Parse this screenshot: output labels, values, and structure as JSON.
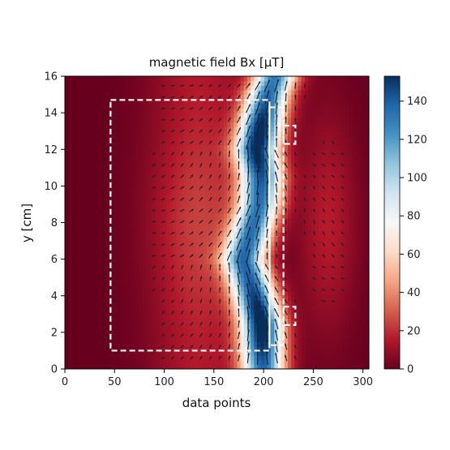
{
  "chart_data": {
    "type": "heatmap",
    "title": "magnetic field Bx [μT]",
    "xlabel": "data points",
    "ylabel": "y [cm]",
    "xlim": [
      0,
      306
    ],
    "ylim": [
      0,
      16
    ],
    "x_ticks": [
      "0",
      "50",
      "100",
      "150",
      "200",
      "250",
      "300"
    ],
    "y_ticks": [
      "0",
      "2",
      "4",
      "6",
      "8",
      "10",
      "12",
      "14",
      "16"
    ],
    "colorbar": {
      "range": [
        0,
        153
      ],
      "ticks": [
        "0",
        "20",
        "40",
        "60",
        "80",
        "100",
        "120",
        "140"
      ],
      "colormap": [
        "#67001f",
        "#b2182b",
        "#d6604d",
        "#f4a582",
        "#fddbc7",
        "#f7f7f7",
        "#d1e5f0",
        "#92c5de",
        "#4393c3",
        "#2166ac",
        "#053061"
      ]
    },
    "field_band": {
      "description_of_values": "high-field ridge center line (x in data points, y in cm)",
      "center_x": [
        200,
        198,
        188,
        180,
        188,
        196,
        198,
        192,
        198,
        205,
        212
      ],
      "center_y": [
        0,
        2.5,
        4.5,
        6.0,
        7.5,
        9.0,
        10.5,
        12.0,
        13.5,
        15.0,
        16.0
      ],
      "peak_value": 153,
      "peaks": [
        {
          "x": 198,
          "y": 2.5,
          "value": 153
        },
        {
          "x": 200,
          "y": 12.5,
          "value": 150
        }
      ]
    },
    "overlays": {
      "outer_box": {
        "x": [
          46,
          206
        ],
        "y": [
          1.0,
          14.7
        ],
        "style": "white dashed"
      },
      "right_box": {
        "x": [
          206,
          220
        ],
        "y": [
          1.3,
          14.3
        ],
        "style": "white dashed"
      },
      "notch_top": {
        "x": [
          220,
          232
        ],
        "y": [
          12.3,
          13.3
        ],
        "style": "white dashed"
      },
      "notch_bottom": {
        "x": [
          220,
          232
        ],
        "y": [
          2.4,
          3.4
        ],
        "style": "white dashed"
      }
    },
    "quiver": {
      "color": "#222222",
      "grid": "regular arrow field",
      "description": "vector directions of in-plane field"
    }
  }
}
